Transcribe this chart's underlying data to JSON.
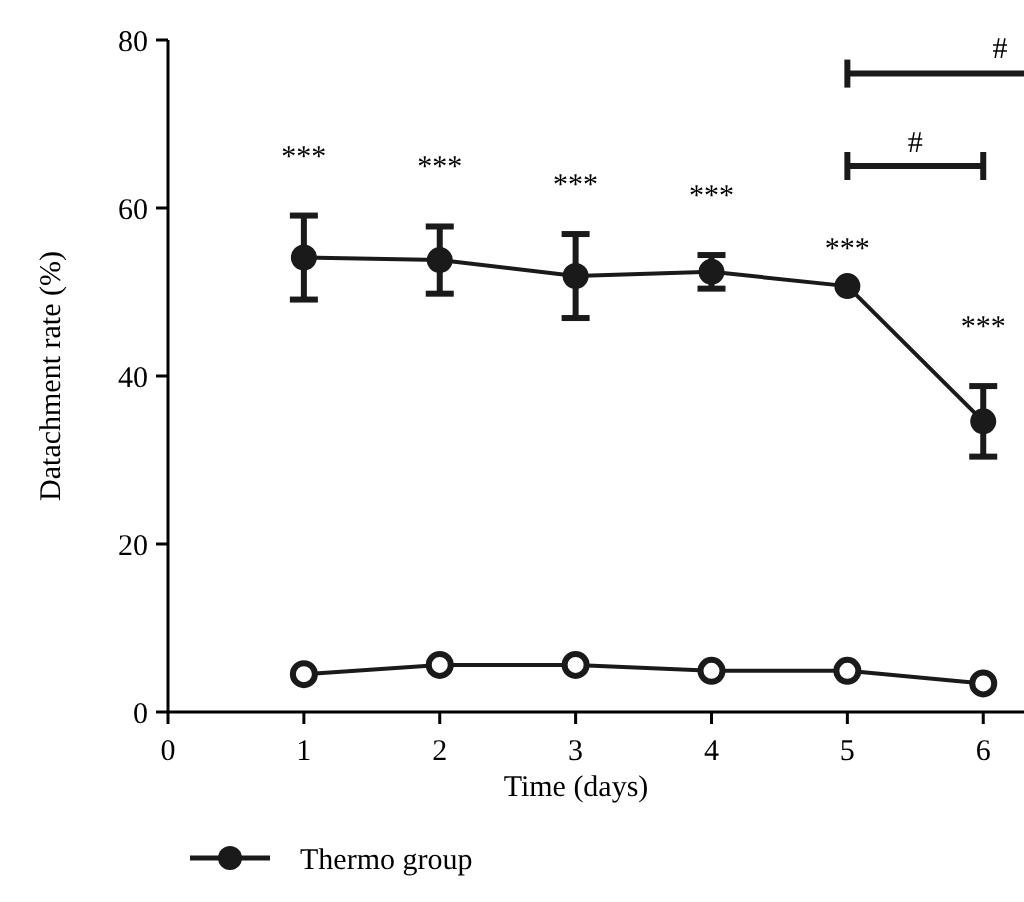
{
  "chart_data": {
    "type": "line",
    "xlabel": "Time (days)",
    "ylabel": "Datachment rate (%)",
    "x": [
      1,
      2,
      3,
      4,
      5,
      6
    ],
    "series": [
      {
        "name": "Thermo group",
        "color": "#1a1a1a",
        "values": [
          54.1,
          53.8,
          51.9,
          52.4,
          50.7,
          34.6
        ],
        "errors": [
          5,
          4,
          5,
          2,
          null,
          4.2
        ]
      },
      {
        "color": "#1a1a1a",
        "values": [
          4.5,
          5.6,
          5.6,
          4.9,
          4.9,
          3.4
        ]
      }
    ],
    "xlim": [
      0,
      6.3
    ],
    "xticks": [
      0,
      1,
      2,
      3,
      4,
      5,
      6
    ],
    "ylim": [
      0,
      80
    ],
    "yticks": [
      0,
      20,
      40,
      60,
      80
    ],
    "marker": "circle",
    "legend": "bottom",
    "annotations": [
      "***",
      "***",
      "***",
      "***",
      "***",
      "***",
      "#",
      "#"
    ]
  }
}
